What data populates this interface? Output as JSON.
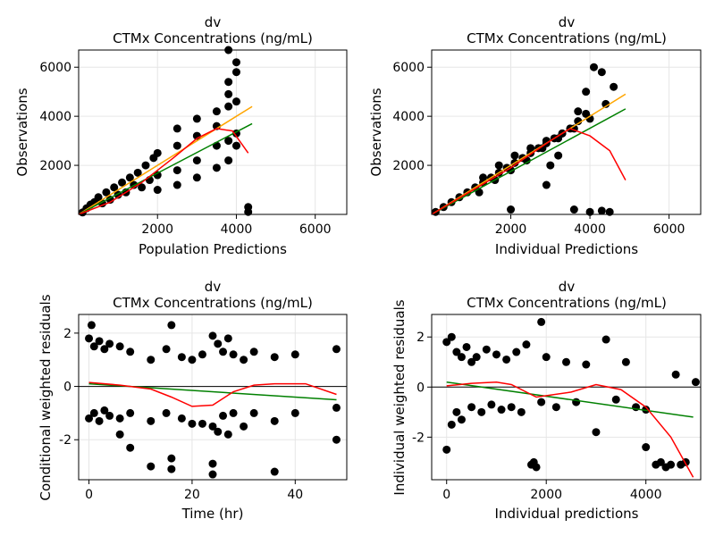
{
  "chart_data": [
    {
      "type": "scatter",
      "title": "dv",
      "subtitle": "CTMx Concentrations (ng/mL)",
      "xlabel": "Population Predictions",
      "ylabel": "Observations",
      "xlim": [
        0,
        6800
      ],
      "ylim": [
        0,
        6700
      ],
      "xticks": [
        2000,
        4000,
        6000
      ],
      "yticks": [
        2000,
        4000,
        6000
      ],
      "xtick_labels": [
        "2000",
        "4000",
        "6000"
      ],
      "ytick_labels": [
        "2000",
        "4000",
        "6000"
      ],
      "hline": null,
      "points": [
        [
          100,
          80
        ],
        [
          200,
          250
        ],
        [
          300,
          400
        ],
        [
          400,
          500
        ],
        [
          500,
          700
        ],
        [
          600,
          450
        ],
        [
          700,
          900
        ],
        [
          800,
          600
        ],
        [
          900,
          1100
        ],
        [
          1000,
          800
        ],
        [
          1100,
          1300
        ],
        [
          1200,
          900
        ],
        [
          1300,
          1500
        ],
        [
          1400,
          1200
        ],
        [
          1500,
          1700
        ],
        [
          1600,
          1100
        ],
        [
          1700,
          2000
        ],
        [
          1800,
          1400
        ],
        [
          1900,
          2300
        ],
        [
          2000,
          1600
        ],
        [
          2000,
          2500
        ],
        [
          2000,
          1000
        ],
        [
          2500,
          1800
        ],
        [
          2500,
          2800
        ],
        [
          2500,
          1200
        ],
        [
          2500,
          3500
        ],
        [
          3000,
          2200
        ],
        [
          3000,
          3200
        ],
        [
          3000,
          1500
        ],
        [
          3000,
          3900
        ],
        [
          3500,
          2800
        ],
        [
          3500,
          3600
        ],
        [
          3500,
          1900
        ],
        [
          3500,
          4200
        ],
        [
          3800,
          3000
        ],
        [
          3800,
          4400
        ],
        [
          3800,
          2200
        ],
        [
          3800,
          4900
        ],
        [
          3800,
          5400
        ],
        [
          3800,
          6700
        ],
        [
          4000,
          3300
        ],
        [
          4000,
          4600
        ],
        [
          4000,
          2800
        ],
        [
          4000,
          5800
        ],
        [
          4000,
          6200
        ],
        [
          4300,
          300
        ],
        [
          4300,
          100
        ]
      ],
      "series": [
        {
          "name": "identity",
          "color": "#ffa500",
          "x": [
            0,
            4400
          ],
          "y": [
            0,
            4400
          ]
        },
        {
          "name": "linear fit",
          "color": "#008000",
          "x": [
            0,
            4400
          ],
          "y": [
            0,
            3700
          ]
        },
        {
          "name": "loess",
          "color": "#ff0000",
          "x": [
            0,
            800,
            1600,
            2400,
            3000,
            3500,
            3900,
            4300
          ],
          "y": [
            0,
            500,
            1300,
            2300,
            3100,
            3500,
            3400,
            2500
          ]
        }
      ]
    },
    {
      "type": "scatter",
      "title": "dv",
      "subtitle": "CTMx Concentrations (ng/mL)",
      "xlabel": "Individual Predictions",
      "ylabel": "Observations",
      "xlim": [
        0,
        6800
      ],
      "ylim": [
        0,
        6700
      ],
      "xticks": [
        2000,
        4000,
        6000
      ],
      "yticks": [
        2000,
        4000,
        6000
      ],
      "xtick_labels": [
        "2000",
        "4000",
        "6000"
      ],
      "ytick_labels": [
        "2000",
        "4000",
        "6000"
      ],
      "hline": null,
      "points": [
        [
          100,
          100
        ],
        [
          300,
          300
        ],
        [
          500,
          500
        ],
        [
          700,
          700
        ],
        [
          900,
          900
        ],
        [
          1100,
          1100
        ],
        [
          1300,
          1300
        ],
        [
          1500,
          1500
        ],
        [
          1700,
          1700
        ],
        [
          1900,
          1900
        ],
        [
          2100,
          2100
        ],
        [
          2300,
          2300
        ],
        [
          2500,
          2500
        ],
        [
          2700,
          2700
        ],
        [
          2900,
          2900
        ],
        [
          3100,
          3100
        ],
        [
          3300,
          3300
        ],
        [
          3500,
          3500
        ],
        [
          3700,
          3800
        ],
        [
          3900,
          4100
        ],
        [
          1200,
          900
        ],
        [
          1600,
          1400
        ],
        [
          2000,
          1800
        ],
        [
          2400,
          2200
        ],
        [
          2800,
          2700
        ],
        [
          3200,
          3100
        ],
        [
          3600,
          3500
        ],
        [
          4000,
          3900
        ],
        [
          1300,
          1500
        ],
        [
          1700,
          2000
        ],
        [
          2100,
          2400
        ],
        [
          2500,
          2700
        ],
        [
          2900,
          3000
        ],
        [
          3300,
          3300
        ],
        [
          3700,
          4200
        ],
        [
          3900,
          5000
        ],
        [
          4100,
          6000
        ],
        [
          4400,
          4500
        ],
        [
          4600,
          5200
        ],
        [
          4300,
          5800
        ],
        [
          2900,
          1200
        ],
        [
          3000,
          2000
        ],
        [
          3200,
          2400
        ],
        [
          2000,
          200
        ],
        [
          3600,
          200
        ],
        [
          4000,
          100
        ],
        [
          4300,
          150
        ],
        [
          4500,
          100
        ]
      ],
      "series": [
        {
          "name": "identity",
          "color": "#ffa500",
          "x": [
            0,
            4900
          ],
          "y": [
            0,
            4900
          ]
        },
        {
          "name": "linear fit",
          "color": "#008000",
          "x": [
            0,
            4900
          ],
          "y": [
            0,
            4300
          ]
        },
        {
          "name": "loess",
          "color": "#ff0000",
          "x": [
            0,
            1000,
            2000,
            3000,
            3500,
            4000,
            4500,
            4900
          ],
          "y": [
            0,
            950,
            1900,
            3000,
            3500,
            3200,
            2600,
            1400
          ]
        }
      ]
    },
    {
      "type": "scatter",
      "title": "dv",
      "subtitle": "CTMx Concentrations (ng/mL)",
      "xlabel": "Time (hr)",
      "ylabel": "Conditional weighted residuals",
      "xlim": [
        -2,
        50
      ],
      "ylim": [
        -3.5,
        2.7
      ],
      "xticks": [
        0,
        20,
        40
      ],
      "yticks": [
        -2,
        0,
        2
      ],
      "xtick_labels": [
        "0",
        "20",
        "40"
      ],
      "ytick_labels": [
        "-2",
        "0",
        "2"
      ],
      "hline": 0,
      "points": [
        [
          0,
          1.8
        ],
        [
          0,
          -1.2
        ],
        [
          0.5,
          2.3
        ],
        [
          1,
          1.5
        ],
        [
          1,
          -1.0
        ],
        [
          2,
          1.7
        ],
        [
          2,
          -1.3
        ],
        [
          3,
          1.4
        ],
        [
          3,
          -0.9
        ],
        [
          4,
          1.6
        ],
        [
          4,
          -1.1
        ],
        [
          6,
          1.5
        ],
        [
          6,
          -1.2
        ],
        [
          6,
          -1.8
        ],
        [
          8,
          1.3
        ],
        [
          8,
          -2.3
        ],
        [
          8,
          -1.0
        ],
        [
          12,
          1.0
        ],
        [
          12,
          -3.0
        ],
        [
          12,
          -1.3
        ],
        [
          15,
          1.4
        ],
        [
          15,
          -1.0
        ],
        [
          16,
          2.3
        ],
        [
          16,
          -2.7
        ],
        [
          16,
          -3.1
        ],
        [
          18,
          1.1
        ],
        [
          18,
          -1.2
        ],
        [
          20,
          1.0
        ],
        [
          20,
          -1.4
        ],
        [
          22,
          1.2
        ],
        [
          22,
          -1.4
        ],
        [
          24,
          1.9
        ],
        [
          24,
          -1.5
        ],
        [
          24,
          -2.9
        ],
        [
          24,
          -3.3
        ],
        [
          25,
          1.6
        ],
        [
          25,
          -1.7
        ],
        [
          26,
          1.3
        ],
        [
          26,
          -1.1
        ],
        [
          27,
          1.8
        ],
        [
          27,
          -1.8
        ],
        [
          28,
          1.2
        ],
        [
          28,
          -1.0
        ],
        [
          30,
          1.0
        ],
        [
          30,
          -1.5
        ],
        [
          32,
          1.3
        ],
        [
          32,
          -1.0
        ],
        [
          36,
          1.1
        ],
        [
          36,
          -3.2
        ],
        [
          36,
          -1.3
        ],
        [
          40,
          1.2
        ],
        [
          40,
          -1.0
        ],
        [
          48,
          1.4
        ],
        [
          48,
          -2.0
        ],
        [
          48,
          -0.8
        ]
      ],
      "series": [
        {
          "name": "linear fit",
          "color": "#008000",
          "x": [
            0,
            48
          ],
          "y": [
            0.1,
            -0.5
          ]
        },
        {
          "name": "loess",
          "color": "#ff0000",
          "x": [
            0,
            6,
            12,
            16,
            20,
            24,
            28,
            32,
            36,
            42,
            48
          ],
          "y": [
            0.15,
            0.05,
            -0.1,
            -0.4,
            -0.75,
            -0.7,
            -0.2,
            0.05,
            0.1,
            0.1,
            -0.3
          ]
        }
      ]
    },
    {
      "type": "scatter",
      "title": "dv",
      "subtitle": "CTMx Concentrations (ng/mL)",
      "xlabel": "Individual predictions",
      "ylabel": "Individual weighted residuals",
      "xlim": [
        -300,
        5100
      ],
      "ylim": [
        -3.7,
        2.9
      ],
      "xticks": [
        0,
        2000,
        4000
      ],
      "yticks": [
        -2,
        0,
        2
      ],
      "xtick_labels": [
        "0",
        "2000",
        "4000"
      ],
      "ytick_labels": [
        "-2",
        "0",
        "2"
      ],
      "hline": 0,
      "points": [
        [
          0,
          -2.5
        ],
        [
          0,
          1.8
        ],
        [
          100,
          2.0
        ],
        [
          100,
          -1.5
        ],
        [
          200,
          1.4
        ],
        [
          200,
          -1.0
        ],
        [
          300,
          1.2
        ],
        [
          300,
          -1.3
        ],
        [
          400,
          1.6
        ],
        [
          500,
          1.0
        ],
        [
          500,
          -0.8
        ],
        [
          600,
          1.2
        ],
        [
          700,
          -1.0
        ],
        [
          800,
          1.5
        ],
        [
          900,
          -0.7
        ],
        [
          1000,
          1.3
        ],
        [
          1100,
          -0.9
        ],
        [
          1200,
          1.1
        ],
        [
          1300,
          -0.8
        ],
        [
          1400,
          1.4
        ],
        [
          1500,
          -1.0
        ],
        [
          1600,
          1.7
        ],
        [
          1700,
          -3.1
        ],
        [
          1750,
          -3.0
        ],
        [
          1800,
          -3.2
        ],
        [
          1900,
          2.6
        ],
        [
          1900,
          -0.6
        ],
        [
          2000,
          1.2
        ],
        [
          2200,
          -0.8
        ],
        [
          2400,
          1.0
        ],
        [
          2600,
          -0.6
        ],
        [
          2800,
          0.9
        ],
        [
          3000,
          -1.8
        ],
        [
          3200,
          1.9
        ],
        [
          3400,
          -0.5
        ],
        [
          3600,
          1.0
        ],
        [
          3800,
          -0.8
        ],
        [
          4000,
          -0.9
        ],
        [
          4000,
          -2.4
        ],
        [
          4200,
          -3.1
        ],
        [
          4300,
          -3.0
        ],
        [
          4400,
          -3.2
        ],
        [
          4500,
          -3.1
        ],
        [
          4600,
          0.5
        ],
        [
          4700,
          -3.1
        ],
        [
          4800,
          -3.0
        ],
        [
          5000,
          0.2
        ]
      ],
      "series": [
        {
          "name": "linear fit",
          "color": "#008000",
          "x": [
            0,
            4950
          ],
          "y": [
            0.2,
            -1.2
          ]
        },
        {
          "name": "loess",
          "color": "#ff0000",
          "x": [
            0,
            500,
            1000,
            1300,
            1800,
            2500,
            3000,
            3500,
            4000,
            4500,
            4950
          ],
          "y": [
            0.05,
            0.15,
            0.2,
            0.1,
            -0.4,
            -0.2,
            0.1,
            -0.1,
            -0.8,
            -2.0,
            -3.6
          ]
        }
      ]
    }
  ]
}
